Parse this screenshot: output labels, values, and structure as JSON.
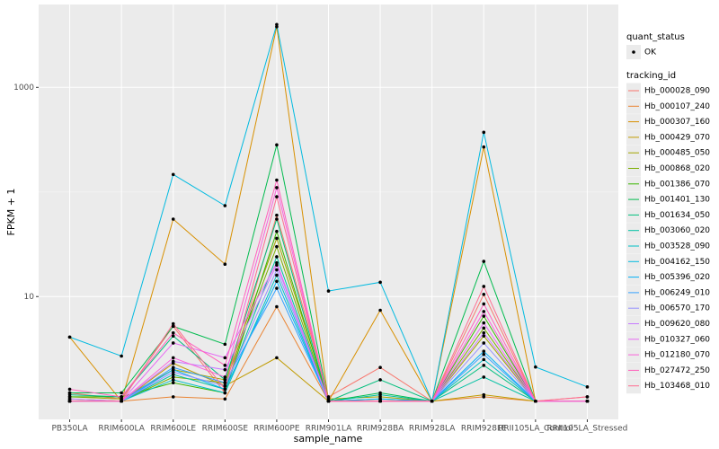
{
  "chart_data": {
    "type": "line",
    "x_label": "sample_name",
    "y_label": "FPKM + 1",
    "categories": [
      "PB350LA",
      "RRIM600LA",
      "RRIM600LE",
      "RRIM600SE",
      "RRIM600PE",
      "RRIM901LA",
      "RRIM928BA",
      "RRIM928LA",
      "RRIM928LE",
      "RRII105LA_Control",
      "RRII105LA_Stressed"
    ],
    "ylim": [
      0.67,
      6200
    ],
    "yticks": [
      10,
      1000
    ],
    "log_scale": true,
    "grid": true,
    "legend_position": "right",
    "legend_title": "tracking_id",
    "shape_legend": {
      "title": "quant_status",
      "labels": [
        "OK"
      ]
    },
    "series": [
      {
        "name": "Hb_000028_090",
        "color": "#F8766D",
        "values": [
          1.2,
          1.05,
          5.2,
          1.2,
          60,
          1.1,
          2.1,
          1.0,
          10.5,
          1.0,
          1.1
        ]
      },
      {
        "name": "Hb_000107_240",
        "color": "#EA8331",
        "values": [
          1.0,
          1.0,
          1.1,
          1.05,
          8,
          1.0,
          1.0,
          1.0,
          1.1,
          1.0,
          1.0
        ]
      },
      {
        "name": "Hb_000307_160",
        "color": "#D89000",
        "values": [
          4.1,
          1.0,
          55,
          20.4,
          3800,
          1.0,
          7.4,
          1.0,
          269,
          1.0,
          1.0
        ]
      },
      {
        "name": "Hb_000429_070",
        "color": "#C09B00",
        "values": [
          1.0,
          1.0,
          2.3,
          1.4,
          2.6,
          1.0,
          1.0,
          1.0,
          1.15,
          1.0,
          1.0
        ]
      },
      {
        "name": "Hb_000485_050",
        "color": "#A3A500",
        "values": [
          1.1,
          1.05,
          2.0,
          1.6,
          36,
          1.05,
          1.1,
          1.0,
          4.2,
          1.0,
          1.0
        ]
      },
      {
        "name": "Hb_000868_020",
        "color": "#7CAE00",
        "values": [
          1.05,
          1.0,
          1.7,
          1.5,
          30,
          1.0,
          1.05,
          1.0,
          5.0,
          1.0,
          1.0
        ]
      },
      {
        "name": "Hb_001386_070",
        "color": "#39B600",
        "values": [
          1.1,
          1.1,
          1.5,
          1.2,
          42,
          1.0,
          1.0,
          1.0,
          6.5,
          1.0,
          1.0
        ]
      },
      {
        "name": "Hb_001401_130",
        "color": "#00BB4E",
        "values": [
          1.2,
          1.2,
          5.2,
          3.5,
          282,
          1.0,
          1.2,
          1.0,
          21.7,
          1.0,
          1.0
        ]
      },
      {
        "name": "Hb_001634_050",
        "color": "#00BF7D",
        "values": [
          1.15,
          1.1,
          4.2,
          1.6,
          55,
          1.0,
          1.6,
          1.0,
          2.2,
          1.0,
          1.0
        ]
      },
      {
        "name": "Hb_003060_020",
        "color": "#00C1A3",
        "values": [
          1.0,
          1.0,
          1.8,
          1.3,
          24,
          1.0,
          1.15,
          1.0,
          1.7,
          1.0,
          1.0
        ]
      },
      {
        "name": "Hb_003528_090",
        "color": "#00BFC4",
        "values": [
          1.0,
          1.0,
          1.6,
          1.2,
          16,
          1.0,
          1.0,
          1.0,
          2.5,
          1.0,
          1.0
        ]
      },
      {
        "name": "Hb_004162_150",
        "color": "#00BAE0",
        "values": [
          4.1,
          2.7,
          147,
          74,
          3990,
          11.3,
          13.7,
          1.0,
          372,
          2.12,
          1.37
        ]
      },
      {
        "name": "Hb_005396_020",
        "color": "#00B0F6",
        "values": [
          1.0,
          1.0,
          2.0,
          1.3,
          14,
          1.0,
          1.05,
          1.0,
          3.0,
          1.0,
          1.0
        ]
      },
      {
        "name": "Hb_006249_010",
        "color": "#35A2FF",
        "values": [
          1.0,
          1.0,
          2.1,
          1.5,
          12,
          1.0,
          1.0,
          1.0,
          2.8,
          1.0,
          1.0
        ]
      },
      {
        "name": "Hb_006570_170",
        "color": "#9590FF",
        "values": [
          1.0,
          1.0,
          1.9,
          1.4,
          18,
          1.0,
          1.0,
          1.0,
          3.6,
          1.0,
          1.0
        ]
      },
      {
        "name": "Hb_009620_080",
        "color": "#C77CFF",
        "values": [
          1.05,
          1.0,
          2.4,
          2.0,
          20,
          1.0,
          1.0,
          1.0,
          4.5,
          1.0,
          1.0
        ]
      },
      {
        "name": "Hb_010327_060",
        "color": "#E76BF3",
        "values": [
          1.0,
          1.0,
          3.6,
          2.6,
          21,
          1.0,
          1.0,
          1.0,
          5.6,
          1.0,
          1.0
        ]
      },
      {
        "name": "Hb_012180_070",
        "color": "#FA62DB",
        "values": [
          1.0,
          1.0,
          2.6,
          1.7,
          110,
          1.0,
          1.0,
          1.0,
          7.2,
          1.0,
          1.0
        ]
      },
      {
        "name": "Hb_027472_250",
        "color": "#FF62BC",
        "values": [
          1.3,
          1.1,
          4.5,
          2.2,
          130,
          1.0,
          1.0,
          1.0,
          8.5,
          1.0,
          1.0
        ]
      },
      {
        "name": "Hb_103468_010",
        "color": "#FF6C91",
        "values": [
          1.0,
          1.0,
          5.5,
          1.3,
          90,
          1.0,
          1.0,
          1.0,
          12.5,
          1.0,
          1.1
        ]
      }
    ]
  }
}
